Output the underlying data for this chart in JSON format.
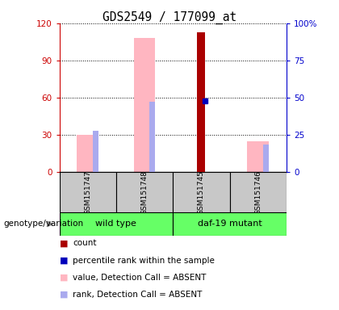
{
  "title": "GDS2549 / 177099_at",
  "samples": [
    "GSM151747",
    "GSM151748",
    "GSM151745",
    "GSM151746"
  ],
  "ylim_left": [
    0,
    120
  ],
  "ylim_right": [
    0,
    100
  ],
  "yticks_left": [
    0,
    30,
    60,
    90,
    120
  ],
  "ytick_labels_left": [
    "0",
    "30",
    "60",
    "90",
    "120"
  ],
  "yticks_right": [
    0,
    25,
    50,
    75,
    100
  ],
  "ytick_labels_right": [
    "0",
    "25",
    "50",
    "75",
    "100%"
  ],
  "count_values": [
    0,
    0,
    113,
    0
  ],
  "percentile_values": [
    0,
    0,
    48,
    0
  ],
  "pink_bar_values": [
    30,
    108,
    0,
    25
  ],
  "rank_absent_values": [
    33,
    57,
    0,
    22
  ],
  "count_color": "#AA0000",
  "percentile_color": "#0000BB",
  "pink_color": "#FFB6C1",
  "rank_absent_color": "#AAAAEE",
  "left_axis_color": "#CC0000",
  "right_axis_color": "#0000CC",
  "background_color": "#ffffff",
  "legend_items": [
    "count",
    "percentile rank within the sample",
    "value, Detection Call = ABSENT",
    "rank, Detection Call = ABSENT"
  ],
  "legend_colors": [
    "#AA0000",
    "#0000BB",
    "#FFB6C1",
    "#AAAAEE"
  ],
  "group1_label": "wild type",
  "group2_label": "daf-19 mutant",
  "group_color": "#66FF66",
  "sample_bg": "#C8C8C8",
  "geno_label": "genotype/variation"
}
